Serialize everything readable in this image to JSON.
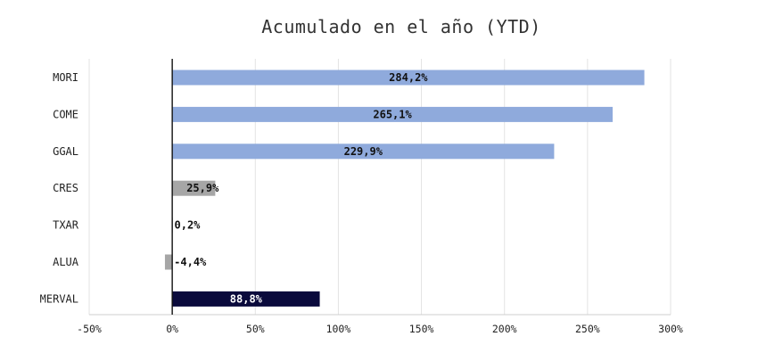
{
  "chart_data": {
    "type": "bar",
    "orientation": "horizontal",
    "title": "Acumulado en el año (YTD)",
    "xlabel": "",
    "ylabel": "",
    "categories": [
      "MORI",
      "COME",
      "GGAL",
      "CRES",
      "TXAR",
      "ALUA",
      "MERVAL"
    ],
    "values": [
      284.2,
      265.1,
      229.9,
      25.9,
      0.2,
      -4.4,
      88.8
    ],
    "data_labels": [
      "284,2%",
      "265,1%",
      "229,9%",
      "25,9%",
      "0,2%",
      "-4,4%",
      "88,8%"
    ],
    "bar_colors": [
      "#8faadc",
      "#8faadc",
      "#8faadc",
      "#a6a6a6",
      "#a6a6a6",
      "#a6a6a6",
      "#0a0a3c"
    ],
    "xlim": [
      -50,
      300
    ],
    "xticks": [
      -50,
      0,
      50,
      100,
      150,
      200,
      250,
      300
    ],
    "xtick_labels": [
      "-50%",
      "0%",
      "50%",
      "100%",
      "150%",
      "200%",
      "250%",
      "300%"
    ],
    "grid": "vertical",
    "legend": "none"
  }
}
